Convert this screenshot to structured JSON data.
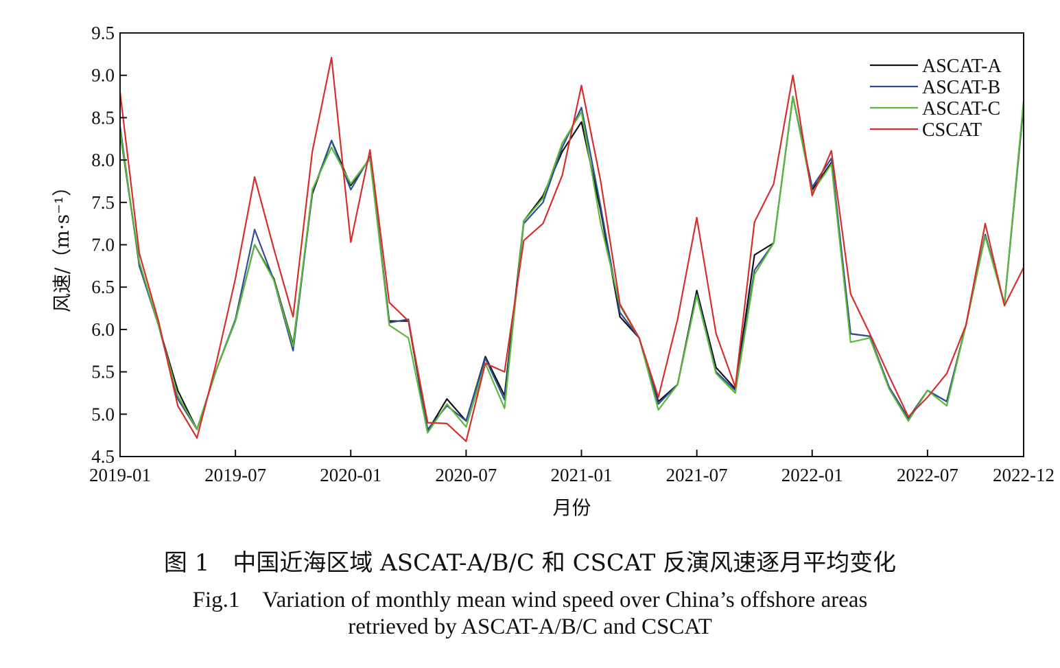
{
  "captions": {
    "cn": "图 1　中国近海区域 ASCAT-A/B/C 和 CSCAT 反演风速逐月平均变化",
    "en_line1": "Fig.1　Variation of monthly mean wind speed over China’s offshore areas",
    "en_line2": "retrieved by ASCAT-A/B/C and CSCAT"
  },
  "chart_data": {
    "type": "line",
    "title": "",
    "xlabel": "月份",
    "ylabel": "风速/（m·s⁻¹）",
    "ylim": [
      4.5,
      9.5
    ],
    "yticks": [
      4.5,
      5.0,
      5.5,
      6.0,
      6.5,
      7.0,
      7.5,
      8.0,
      8.5,
      9.0,
      9.5
    ],
    "ytick_labels": [
      "4.5",
      "5.0",
      "5.5",
      "6.0",
      "6.5",
      "7.0",
      "7.5",
      "8.0",
      "8.5",
      "9.0",
      "9.5"
    ],
    "x": [
      "2019-01",
      "2019-02",
      "2019-03",
      "2019-04",
      "2019-05",
      "2019-06",
      "2019-07",
      "2019-08",
      "2019-09",
      "2019-10",
      "2019-11",
      "2019-12",
      "2020-01",
      "2020-02",
      "2020-03",
      "2020-04",
      "2020-05",
      "2020-06",
      "2020-07",
      "2020-08",
      "2020-09",
      "2020-10",
      "2020-11",
      "2020-12",
      "2021-01",
      "2021-02",
      "2021-03",
      "2021-04",
      "2021-05",
      "2021-06",
      "2021-07",
      "2021-08",
      "2021-09",
      "2021-10",
      "2021-11",
      "2021-12",
      "2022-01",
      "2022-02",
      "2022-03",
      "2022-04",
      "2022-05",
      "2022-06",
      "2022-07",
      "2022-08",
      "2022-09",
      "2022-10",
      "2022-11",
      "2022-12"
    ],
    "xticks": [
      "2019-01",
      "2019-07",
      "2020-01",
      "2020-07",
      "2021-01",
      "2021-07",
      "2022-01",
      "2022-07",
      "2022-12"
    ],
    "grid": false,
    "legend_position": "top-right",
    "series": [
      {
        "name": "ASCAT-A",
        "color": "#111111",
        "values": [
          8.33,
          6.78,
          6.05,
          5.28,
          4.82,
          5.52,
          6.1,
          7.0,
          6.6,
          5.82,
          7.6,
          8.23,
          7.7,
          8.02,
          6.1,
          6.1,
          4.8,
          5.18,
          4.92,
          5.68,
          5.22,
          7.28,
          7.58,
          8.1,
          8.45,
          7.4,
          6.15,
          5.9,
          5.15,
          5.35,
          6.46,
          5.55,
          5.3,
          6.88,
          7.02,
          8.75,
          7.65,
          7.97,
          5.95,
          5.92,
          5.32,
          4.95,
          5.28,
          5.15,
          6.05,
          7.12,
          6.3,
          8.65
        ]
      },
      {
        "name": "ASCAT-B",
        "color": "#2d4f96",
        "values": [
          8.4,
          6.75,
          6.05,
          5.18,
          4.82,
          5.52,
          6.12,
          7.18,
          6.58,
          5.75,
          7.62,
          8.23,
          7.65,
          8.04,
          6.08,
          6.12,
          4.82,
          5.1,
          4.92,
          5.66,
          5.17,
          7.25,
          7.5,
          8.15,
          8.62,
          7.45,
          6.2,
          5.9,
          5.12,
          5.35,
          6.42,
          5.5,
          5.28,
          6.7,
          7.02,
          8.75,
          7.68,
          8.02,
          5.95,
          5.92,
          5.32,
          4.95,
          5.28,
          5.15,
          6.05,
          7.12,
          6.3,
          8.68
        ]
      },
      {
        "name": "ASCAT-C",
        "color": "#5cb83a",
        "values": [
          8.35,
          6.8,
          6.05,
          5.22,
          4.82,
          5.52,
          6.1,
          7.0,
          6.58,
          5.8,
          7.65,
          8.15,
          7.72,
          8.02,
          6.05,
          5.9,
          4.78,
          5.12,
          4.85,
          5.6,
          5.07,
          7.28,
          7.55,
          8.2,
          8.57,
          7.25,
          6.28,
          5.9,
          5.05,
          5.35,
          6.4,
          5.48,
          5.25,
          6.65,
          7.02,
          8.75,
          7.62,
          7.95,
          5.85,
          5.9,
          5.3,
          4.92,
          5.28,
          5.1,
          6.05,
          7.1,
          6.3,
          8.7
        ]
      },
      {
        "name": "CSCAT",
        "color": "#d42e2e",
        "values": [
          8.8,
          6.9,
          6.1,
          5.1,
          4.72,
          5.6,
          6.6,
          7.8,
          6.95,
          6.15,
          8.1,
          9.21,
          7.03,
          8.12,
          6.32,
          6.1,
          4.9,
          4.89,
          4.68,
          5.6,
          5.5,
          7.05,
          7.25,
          7.82,
          8.88,
          7.75,
          6.3,
          5.9,
          5.2,
          6.12,
          7.32,
          5.95,
          5.32,
          7.27,
          7.72,
          9.0,
          7.58,
          8.11,
          6.42,
          5.95,
          5.45,
          4.97,
          5.2,
          5.48,
          6.05,
          7.25,
          6.28,
          6.73
        ]
      }
    ]
  }
}
